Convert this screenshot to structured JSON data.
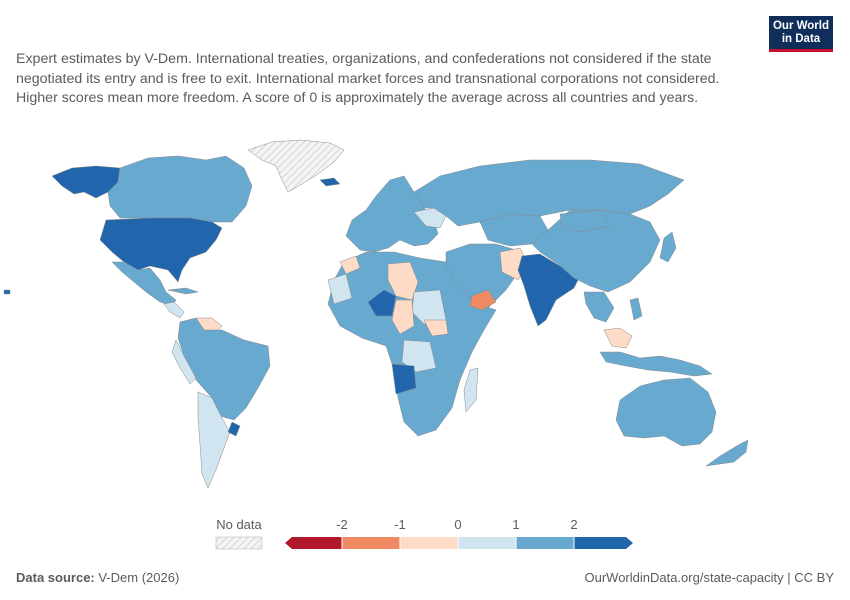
{
  "subtitle": "Expert estimates by V-Dem. International treaties, organizations, and confederations not considered if the state negotiated its entry and is free to exit. International market forces and transnational corporations not considered. Higher scores mean more freedom. A score of 0 is approximately the average across all countries and years.",
  "logo": {
    "line1": "Our World",
    "line2": "in Data"
  },
  "legend": {
    "no_data_label": "No data",
    "ticks": [
      "-2",
      "-1",
      "0",
      "1",
      "2"
    ],
    "bins": [
      {
        "color": "#b2182b"
      },
      {
        "color": "#ef8a62"
      },
      {
        "color": "#fddbc7"
      },
      {
        "color": "#d1e5f0"
      },
      {
        "color": "#67a9cf"
      },
      {
        "color": "#2166ac"
      }
    ]
  },
  "colors": {
    "very_low": "#b2182b",
    "low": "#ef8a62",
    "below_avg": "#fddbc7",
    "above_avg": "#d1e5f0",
    "high": "#67a9cf",
    "very_high": "#2166ac",
    "no_data": "#e8e8e8"
  },
  "footer": {
    "source_label": "Data source:",
    "source_text": " V-Dem (2026)",
    "url": "OurWorldinData.org/state-capacity | CC BY"
  }
}
